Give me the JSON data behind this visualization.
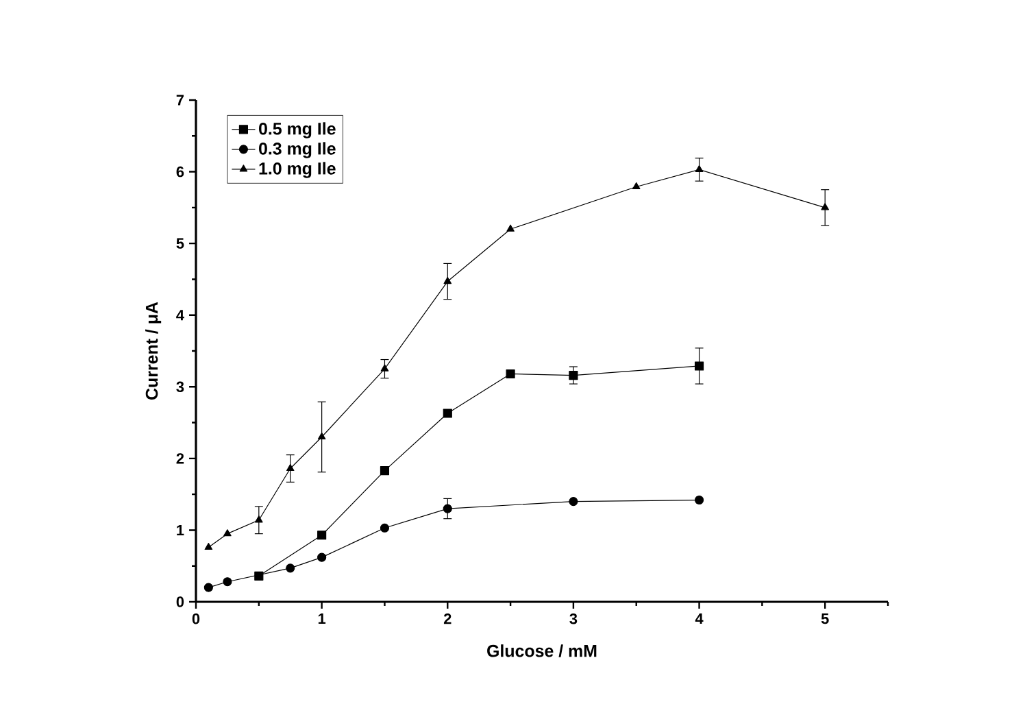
{
  "chart_data": {
    "type": "line",
    "xlabel": "Glucose / mM",
    "ylabel": "Current / μA",
    "xlim": [
      0,
      5.5
    ],
    "ylim": [
      0,
      7
    ],
    "xticks": [
      0,
      {
        "value": 0.5,
        "label": null
      },
      1,
      {
        "value": 1.5,
        "label": null
      },
      2,
      {
        "value": 2.5,
        "label": null
      },
      3,
      {
        "value": 3.5,
        "label": null
      },
      4,
      {
        "value": 4.5,
        "label": null
      },
      5,
      {
        "value": 5.5,
        "label": null
      }
    ],
    "yticks": [
      0,
      {
        "value": 0.5,
        "label": null
      },
      1,
      {
        "value": 1.5,
        "label": null
      },
      2,
      {
        "value": 2.5,
        "label": null
      },
      3,
      {
        "value": 3.5,
        "label": null
      },
      4,
      {
        "value": 4.5,
        "label": null
      },
      5,
      {
        "value": 5.5,
        "label": null
      },
      6,
      {
        "value": 6.5,
        "label": null
      },
      7
    ],
    "grid": false,
    "legend": "top left",
    "series": [
      {
        "name": "0.5 mg Ile",
        "color": "#000000",
        "marker": "square",
        "x": [
          0.5,
          1,
          1.5,
          2,
          2.5,
          3,
          4
        ],
        "values": [
          0.36,
          0.93,
          1.83,
          2.63,
          3.18,
          3.16,
          3.29
        ],
        "errors": [
          null,
          null,
          null,
          null,
          null,
          0.12,
          0.25
        ]
      },
      {
        "name": "0.3 mg Ile",
        "color": "#000000",
        "marker": "circle",
        "x": [
          0.1,
          0.25,
          0.5,
          0.75,
          1,
          1.5,
          2,
          3,
          4
        ],
        "values": [
          0.2,
          0.28,
          null,
          0.47,
          0.62,
          1.03,
          1.3,
          1.4,
          1.42
        ],
        "errors": [
          null,
          null,
          null,
          null,
          null,
          null,
          0.14,
          null,
          null
        ]
      },
      {
        "name": "1.0 mg Ile",
        "color": "#000000",
        "marker": "triangle",
        "x": [
          0.1,
          0.25,
          0.5,
          0.75,
          1,
          1.5,
          2,
          2.5,
          3.5,
          4,
          5
        ],
        "values": [
          0.76,
          0.95,
          1.14,
          1.86,
          2.3,
          3.25,
          4.47,
          5.2,
          5.79,
          6.03,
          5.5
        ],
        "errors": [
          null,
          null,
          0.19,
          0.19,
          0.49,
          0.13,
          0.25,
          null,
          null,
          0.16,
          0.25
        ]
      }
    ]
  }
}
